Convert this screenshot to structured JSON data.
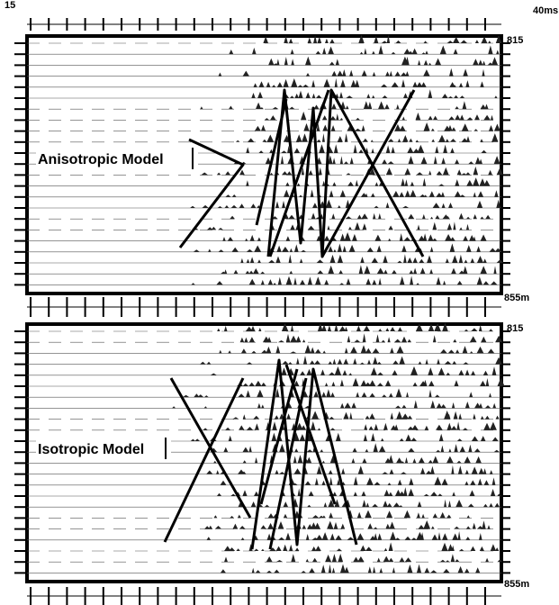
{
  "time_axis": {
    "start": "15",
    "end": "40ms"
  },
  "panels": [
    {
      "label": "Anisotropic Model",
      "depth_top": "815",
      "depth_bottom": "855m"
    },
    {
      "label": "Isotropic Model",
      "depth_top": "815",
      "depth_bottom": "855m"
    }
  ]
}
